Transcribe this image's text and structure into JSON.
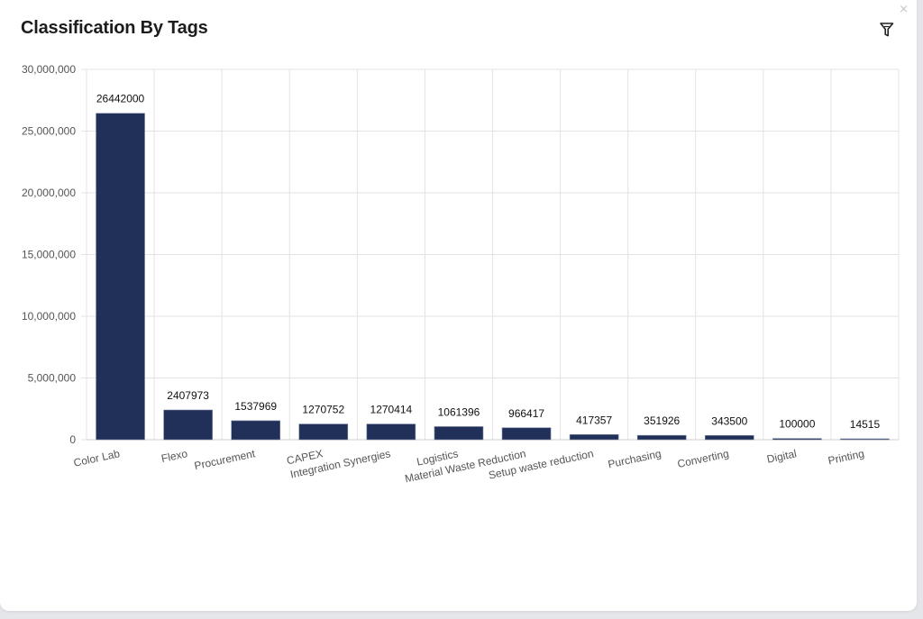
{
  "panel": {
    "title": "Classification By Tags",
    "close_symbol": "×",
    "filter_icon": "funnel-icon"
  },
  "colors": {
    "bar": "#213058",
    "grid": "#e3e3e3",
    "axis_text": "#555555",
    "value_text": "#111111"
  },
  "chart_data": {
    "type": "bar",
    "title": "Classification By Tags",
    "xlabel": "",
    "ylabel": "",
    "categories": [
      "Color Lab",
      "Flexo",
      "Procurement",
      "CAPEX",
      "Integration Synergies",
      "Logistics",
      "Material Waste Reduction",
      "Setup waste reduction",
      "Purchasing",
      "Converting",
      "Digital",
      "Printing"
    ],
    "values": [
      26442000,
      2407973,
      1537969,
      1270752,
      1270414,
      1061396,
      966417,
      417357,
      351926,
      343500,
      100000,
      14515
    ],
    "data_labels": [
      "26442000",
      "2407973",
      "1537969",
      "1270752",
      "1270414",
      "1061396",
      "966417",
      "417357",
      "351926",
      "343500",
      "100000",
      "14515"
    ],
    "ylim": [
      0,
      30000000
    ],
    "yticks": [
      0,
      5000000,
      10000000,
      15000000,
      20000000,
      25000000,
      30000000
    ],
    "ytick_labels": [
      "0",
      "5,000,000",
      "10,000,000",
      "15,000,000",
      "20,000,000",
      "25,000,000",
      "30,000,000"
    ],
    "grid": true,
    "legend": "none"
  }
}
